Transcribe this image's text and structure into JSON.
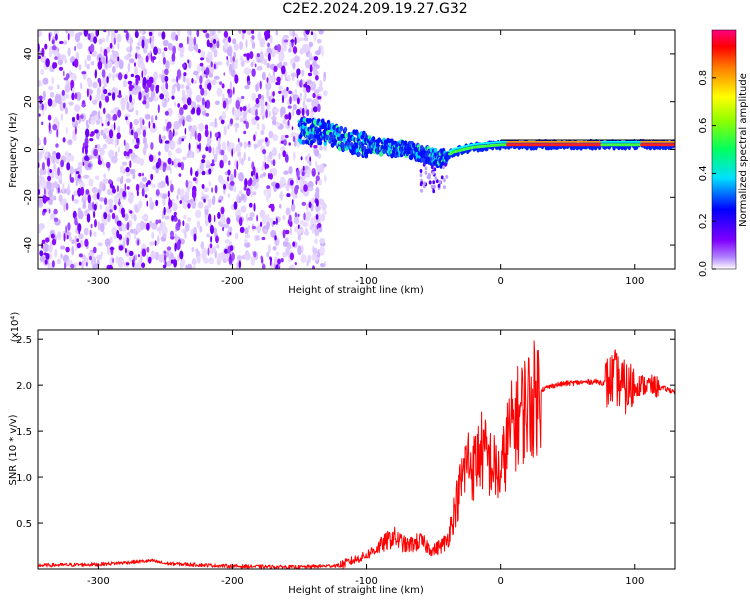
{
  "title": "C2E2.2024.209.19.27.G32",
  "chart_data": [
    {
      "type": "heatmap",
      "xlabel": "Height of straight line (km)",
      "ylabel": "Frequency (Hz)",
      "xlim": [
        -345,
        130
      ],
      "ylim": [
        -50,
        50
      ],
      "x_ticks": [
        "-300",
        "-200",
        "-100",
        "0",
        "100"
      ],
      "y_ticks": [
        "-40",
        "-20",
        "0",
        "20",
        "40"
      ],
      "colorbar": {
        "label": "Normalized spectral amplitude",
        "range": [
          0,
          1
        ],
        "ticks": [
          "0.0",
          "0.2",
          "0.4",
          "0.6",
          "0.8"
        ],
        "colors": [
          "#ffffff",
          "#8000ff",
          "#0000ff",
          "#00ffff",
          "#00ff00",
          "#ffff00",
          "#ff8000",
          "#ff0000",
          "#ff0080"
        ]
      },
      "noise_region_x": [
        -345,
        -135
      ],
      "signal_trace": [
        {
          "x": -150,
          "y": 8
        },
        {
          "x": -130,
          "y": 7
        },
        {
          "x": -110,
          "y": 3
        },
        {
          "x": -90,
          "y": 1
        },
        {
          "x": -70,
          "y": 0
        },
        {
          "x": -55,
          "y": -2
        },
        {
          "x": -45,
          "y": -4
        },
        {
          "x": -35,
          "y": -1
        },
        {
          "x": -20,
          "y": 1
        },
        {
          "x": 0,
          "y": 2
        },
        {
          "x": 40,
          "y": 2
        },
        {
          "x": 80,
          "y": 2
        },
        {
          "x": 100,
          "y": 2
        },
        {
          "x": 130,
          "y": 2
        }
      ],
      "grid": false
    },
    {
      "type": "line",
      "xlabel": "Height of straight line (km)",
      "ylabel": "SNR (10 * v/v)",
      "y_multiplier": "(x10⁴)",
      "xlim": [
        -345,
        130
      ],
      "ylim": [
        0,
        2.6
      ],
      "x_ticks": [
        "-300",
        "-200",
        "-100",
        "0",
        "100"
      ],
      "y_ticks": [
        "0.5",
        "1.0",
        "1.5",
        "2.0",
        "2.5"
      ],
      "series": [
        {
          "color": "#ff0000",
          "x": [
            -345,
            -300,
            -260,
            -250,
            -200,
            -150,
            -120,
            -105,
            -100,
            -90,
            -80,
            -70,
            -60,
            -50,
            -40,
            -35,
            -30,
            -25,
            -20,
            -15,
            -10,
            -5,
            0,
            5,
            10,
            15,
            20,
            25,
            30,
            40,
            50,
            60,
            70,
            80,
            85,
            90,
            95,
            100,
            110,
            120,
            130
          ],
          "values": [
            0.04,
            0.05,
            0.09,
            0.06,
            0.03,
            0.02,
            0.04,
            0.12,
            0.15,
            0.25,
            0.35,
            0.25,
            0.3,
            0.2,
            0.3,
            0.6,
            0.9,
            1.2,
            1.1,
            1.3,
            1.2,
            1.1,
            1.0,
            1.4,
            1.6,
            1.7,
            1.8,
            1.85,
            1.95,
            2.0,
            2.02,
            2.03,
            2.04,
            2.02,
            2.1,
            2.0,
            1.95,
            2.0,
            2.0,
            1.97,
            1.93
          ]
        }
      ],
      "grid": false
    }
  ]
}
